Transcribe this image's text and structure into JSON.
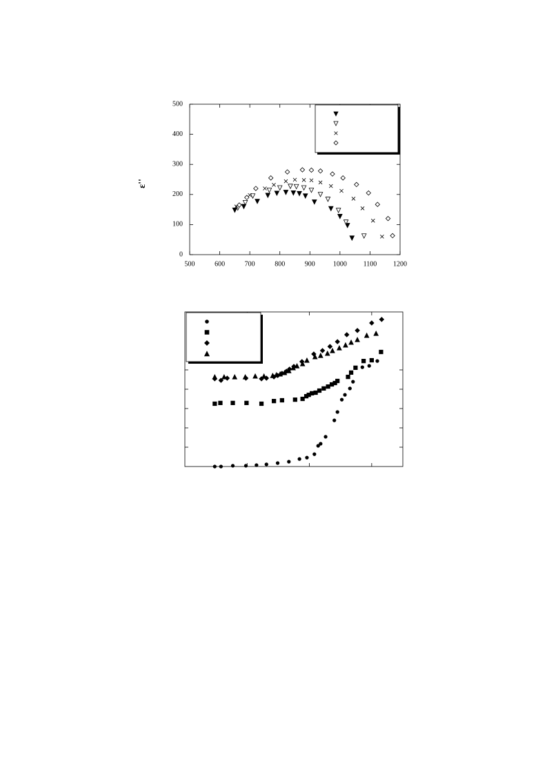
{
  "chart_data": [
    {
      "type": "scatter",
      "y_label": "ε''",
      "xlim": [
        500,
        1200
      ],
      "xticks": [
        500,
        600,
        700,
        800,
        900,
        1000,
        1100,
        1200
      ],
      "ylim": [
        0,
        500
      ],
      "yticks": [
        0,
        100,
        200,
        300,
        400,
        500
      ],
      "tick_labels": true,
      "legend": "upper right",
      "series": [
        {
          "marker": "triangle-down-filled",
          "color": "#000000",
          "x": [
            650,
            680,
            725,
            760,
            790,
            820,
            845,
            865,
            885,
            915,
            970,
            1000,
            1025,
            1040
          ],
          "values": [
            148,
            160,
            177,
            197,
            204,
            207,
            205,
            203,
            195,
            175,
            153,
            127,
            97,
            55
          ]
        },
        {
          "marker": "triangle-down-open",
          "color": "#000000",
          "x": [
            660,
            685,
            710,
            765,
            800,
            835,
            855,
            880,
            905,
            935,
            960,
            995,
            1020,
            1080
          ],
          "values": [
            155,
            173,
            195,
            214,
            222,
            227,
            226,
            222,
            214,
            200,
            184,
            147,
            108,
            62
          ]
        },
        {
          "marker": "cross",
          "color": "#000000",
          "x": [
            655,
            700,
            750,
            780,
            820,
            850,
            880,
            905,
            935,
            970,
            1005,
            1045,
            1075,
            1110,
            1140
          ],
          "values": [
            160,
            198,
            220,
            232,
            244,
            249,
            248,
            247,
            240,
            228,
            212,
            186,
            154,
            113,
            60
          ]
        },
        {
          "marker": "diamond-open",
          "color": "#000000",
          "x": [
            665,
            690,
            720,
            770,
            825,
            875,
            905,
            935,
            975,
            1010,
            1055,
            1095,
            1125,
            1160,
            1175
          ],
          "values": [
            165,
            190,
            220,
            255,
            275,
            282,
            281,
            278,
            268,
            255,
            233,
            205,
            167,
            120,
            63
          ]
        }
      ]
    },
    {
      "type": "scatter",
      "xlim": [
        0,
        3.5
      ],
      "xticks": [
        1,
        2,
        3
      ],
      "ylim": [
        0,
        8
      ],
      "yticks": [
        1,
        2,
        3,
        4,
        5
      ],
      "tick_labels": false,
      "legend": "upper left",
      "series": [
        {
          "marker": "circle-filled",
          "color": "#000000",
          "x": [
            0.48,
            0.58,
            0.77,
            0.98,
            1.15,
            1.31,
            1.49,
            1.67,
            1.84,
            1.96,
            2.08,
            2.14,
            2.18,
            2.26,
            2.4,
            2.45,
            2.52,
            2.57,
            2.65,
            2.7,
            2.85,
            2.96,
            3.09
          ],
          "values": [
            0,
            0,
            0.04,
            0.04,
            0.07,
            0.11,
            0.18,
            0.25,
            0.39,
            0.46,
            0.64,
            1.07,
            1.18,
            1.54,
            2.39,
            2.82,
            3.46,
            3.71,
            4.04,
            4.39,
            5.14,
            5.21,
            5.46
          ]
        },
        {
          "marker": "square-filled",
          "color": "#000000",
          "x": [
            0.48,
            0.57,
            0.77,
            0.99,
            1.23,
            1.43,
            1.56,
            1.77,
            1.89,
            1.95,
            1.99,
            2.04,
            2.1,
            2.16,
            2.23,
            2.3,
            2.36,
            2.41,
            2.45,
            2.62,
            2.67,
            2.74,
            2.87,
            3.0,
            3.15
          ],
          "values": [
            3.25,
            3.29,
            3.29,
            3.29,
            3.25,
            3.39,
            3.43,
            3.46,
            3.5,
            3.64,
            3.71,
            3.79,
            3.82,
            3.93,
            4.04,
            4.14,
            4.25,
            4.32,
            4.43,
            4.64,
            4.86,
            5.11,
            5.46,
            5.5,
            5.93
          ]
        },
        {
          "marker": "diamond-filled",
          "color": "#000000",
          "x": [
            0.48,
            0.58,
            0.68,
            0.98,
            1.23,
            1.31,
            1.43,
            1.49,
            1.56,
            1.63,
            1.68,
            1.75,
            1.88,
            2.07,
            2.21,
            2.33,
            2.45,
            2.6,
            2.77,
            3.0,
            3.16
          ],
          "values": [
            4.54,
            4.46,
            4.57,
            4.57,
            4.54,
            4.57,
            4.64,
            4.71,
            4.82,
            4.93,
            5.04,
            5.18,
            5.43,
            5.82,
            6.0,
            6.21,
            6.46,
            6.82,
            7.04,
            7.43,
            7.61
          ]
        },
        {
          "marker": "triangle-up-filled",
          "color": "#000000",
          "x": [
            0.48,
            0.63,
            0.8,
            0.97,
            1.13,
            1.27,
            1.41,
            1.47,
            1.53,
            1.6,
            1.67,
            1.74,
            1.8,
            1.89,
            1.96,
            2.09,
            2.18,
            2.29,
            2.37,
            2.48,
            2.58,
            2.67,
            2.77,
            2.92,
            3.07
          ],
          "values": [
            4.64,
            4.64,
            4.64,
            4.64,
            4.68,
            4.68,
            4.71,
            4.75,
            4.79,
            4.86,
            4.96,
            5.11,
            5.21,
            5.32,
            5.5,
            5.68,
            5.75,
            5.86,
            6.0,
            6.14,
            6.29,
            6.43,
            6.57,
            6.79,
            6.89
          ]
        }
      ]
    }
  ]
}
